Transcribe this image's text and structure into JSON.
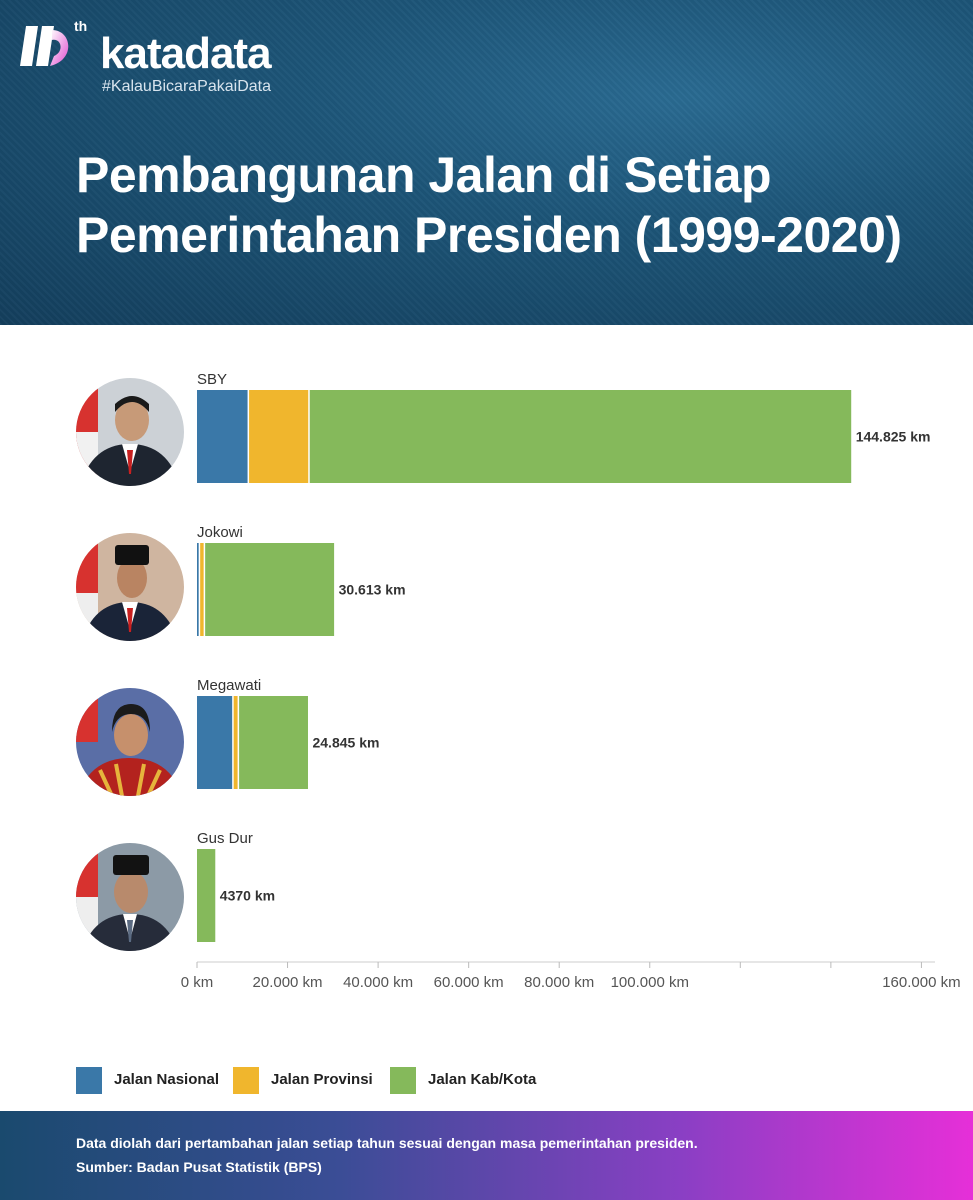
{
  "brand": {
    "name": "katadata",
    "superscript": "th",
    "tagline": "#KalauBicaraPakaiData"
  },
  "title_lines": [
    "Pembangunan Jalan di Setiap",
    "Pemerintahan Presiden (1999-2020)"
  ],
  "colors": {
    "nasional": "#3a78a8",
    "provinsi": "#f0b62d",
    "kabkota": "#85b95b",
    "header_bg": "#1d5578"
  },
  "chart_data": {
    "type": "bar",
    "orientation": "horizontal",
    "stacked": true,
    "categories": [
      "SBY",
      "Jokowi",
      "Megawati",
      "Gus Dur"
    ],
    "series": [
      {
        "name": "Jalan Nasional",
        "values": [
          11500,
          700,
          8100,
          0
        ]
      },
      {
        "name": "Jalan Provinsi",
        "values": [
          13400,
          1100,
          1200,
          0
        ]
      },
      {
        "name": "Jalan Kab/Kota",
        "values": [
          119925,
          28813,
          15545,
          4370
        ]
      }
    ],
    "total_labels": [
      "144.825 km",
      "30.613 km",
      "24.845 km",
      "4370 km"
    ],
    "x_ticks": [
      0,
      20000,
      40000,
      60000,
      80000,
      100000,
      120000,
      140000,
      160000
    ],
    "x_tick_labels": [
      "0 km",
      "20.000 km",
      "40.000 km",
      "60.000 km",
      "80.000 km",
      "100.000 km",
      "",
      "",
      "160.000 km"
    ],
    "xlim": [
      0,
      163000
    ],
    "legend_position": "bottom-left"
  },
  "footer": {
    "note": "Data diolah dari pertambahan jalan setiap tahun sesuai dengan masa pemerintahan presiden.",
    "source": "Sumber: Badan Pusat Statistik (BPS)"
  }
}
